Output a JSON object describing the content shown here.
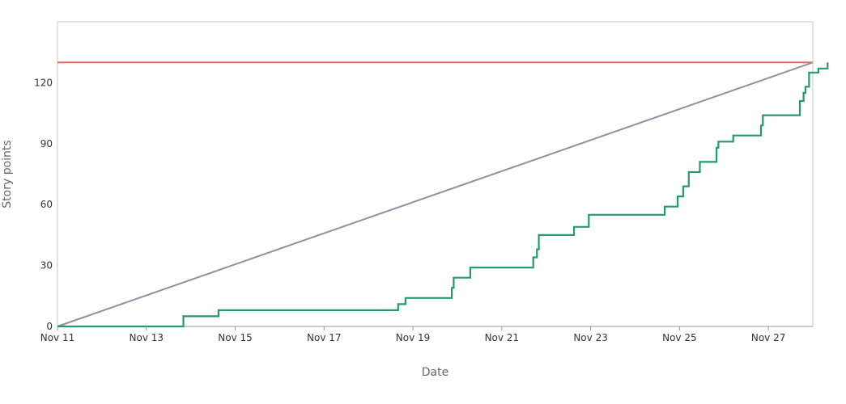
{
  "chart_data": {
    "type": "line",
    "xlabel": "Date",
    "ylabel": "Story points",
    "x_ticks": [
      "Nov 11",
      "Nov 13",
      "Nov 15",
      "Nov 17",
      "Nov 19",
      "Nov 21",
      "Nov 23",
      "Nov 25",
      "Nov 27"
    ],
    "y_ticks": [
      0,
      30,
      60,
      90,
      120
    ],
    "xlim": [
      "2023-11-11",
      "2023-11-28"
    ],
    "ylim": [
      0,
      150
    ],
    "grid": false,
    "colors": {
      "scope": "#e06666",
      "guideline": "#8b93a1",
      "completed": "#239b6e",
      "frame": "#c8c8c8"
    },
    "series": [
      {
        "key": "scope",
        "style": "line",
        "points": [
          [
            "2023-11-11",
            130
          ],
          [
            "2023-11-28",
            130
          ]
        ]
      },
      {
        "key": "guideline",
        "style": "line",
        "points": [
          [
            "2023-11-11",
            0
          ],
          [
            "2023-11-28",
            130
          ]
        ]
      },
      {
        "key": "completed",
        "style": "step",
        "points": [
          [
            "2023-11-11",
            0
          ],
          [
            "2023-11-13 20:00",
            5
          ],
          [
            "2023-11-14 15:00",
            8
          ],
          [
            "2023-11-18 16:00",
            11
          ],
          [
            "2023-11-18 20:00",
            14
          ],
          [
            "2023-11-19 21:00",
            19
          ],
          [
            "2023-11-19 22:00",
            24
          ],
          [
            "2023-11-20 07:00",
            29
          ],
          [
            "2023-11-21 17:00",
            34
          ],
          [
            "2023-11-21 19:00",
            38
          ],
          [
            "2023-11-21 20:00",
            45
          ],
          [
            "2023-11-22 15:00",
            49
          ],
          [
            "2023-11-22 23:00",
            55
          ],
          [
            "2023-11-24 16:00",
            59
          ],
          [
            "2023-11-24 23:00",
            64
          ],
          [
            "2023-11-25 02:00",
            69
          ],
          [
            "2023-11-25 05:00",
            76
          ],
          [
            "2023-11-25 11:00",
            81
          ],
          [
            "2023-11-25 20:00",
            88
          ],
          [
            "2023-11-25 21:00",
            91
          ],
          [
            "2023-11-26 05:00",
            94
          ],
          [
            "2023-11-26 20:00",
            99
          ],
          [
            "2023-11-26 21:00",
            104
          ],
          [
            "2023-11-27 17:00",
            111
          ],
          [
            "2023-11-27 19:00",
            115
          ],
          [
            "2023-11-27 20:00",
            118
          ],
          [
            "2023-11-27 22:00",
            125
          ],
          [
            "2023-11-28 03:00",
            127
          ],
          [
            "2023-11-28 08:00",
            130
          ]
        ]
      }
    ]
  }
}
